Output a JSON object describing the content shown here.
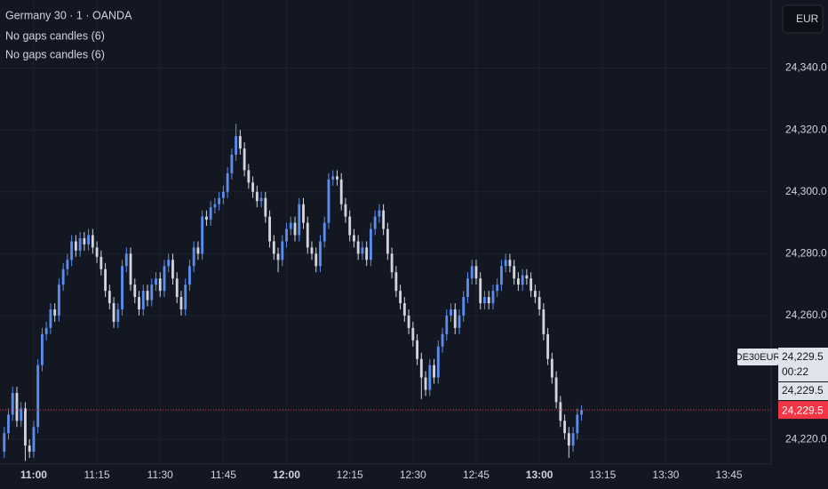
{
  "chart_data": {
    "type": "candlestick",
    "title": "Germany 30 · 1 · OANDA",
    "indicators": [
      "No gaps candles (6)",
      "No gaps candles (6)"
    ],
    "currency": "EUR",
    "up_color": "#5b8def",
    "down_color": "#d1d4dc",
    "xlim": [
      "10:52",
      "13:55"
    ],
    "xticks": [
      "11:00",
      "11:15",
      "11:30",
      "11:45",
      "12:00",
      "12:15",
      "12:30",
      "12:45",
      "13:00",
      "13:15",
      "13:30",
      "13:45"
    ],
    "ylim": [
      24212,
      24362
    ],
    "yticks": [
      {
        "value": 24220,
        "label": "24,220.0"
      },
      {
        "value": 24260,
        "label": "24,260.0"
      },
      {
        "value": 24280,
        "label": "24,280.0"
      },
      {
        "value": 24300,
        "label": "24,300.0"
      },
      {
        "value": 24320,
        "label": "24,320.0"
      },
      {
        "value": 24340,
        "label": "24,340.0"
      }
    ],
    "grid": true,
    "x": [
      "10:53",
      "10:54",
      "10:55",
      "10:56",
      "10:57",
      "10:58",
      "10:59",
      "11:00",
      "11:01",
      "11:02",
      "11:03",
      "11:04",
      "11:05",
      "11:06",
      "11:07",
      "11:08",
      "11:09",
      "11:10",
      "11:11",
      "11:12",
      "11:13",
      "11:14",
      "11:15",
      "11:16",
      "11:17",
      "11:18",
      "11:19",
      "11:20",
      "11:21",
      "11:22",
      "11:23",
      "11:24",
      "11:25",
      "11:26",
      "11:27",
      "11:28",
      "11:29",
      "11:30",
      "11:31",
      "11:32",
      "11:33",
      "11:34",
      "11:35",
      "11:36",
      "11:37",
      "11:38",
      "11:39",
      "11:40",
      "11:41",
      "11:42",
      "11:43",
      "11:44",
      "11:45",
      "11:46",
      "11:47",
      "11:48",
      "11:49",
      "11:50",
      "11:51",
      "11:52",
      "11:53",
      "11:54",
      "11:55",
      "11:56",
      "11:57",
      "11:58",
      "11:59",
      "12:00",
      "12:01",
      "12:02",
      "12:03",
      "12:04",
      "12:05",
      "12:06",
      "12:07",
      "12:08",
      "12:09",
      "12:10",
      "12:11",
      "12:12",
      "12:13",
      "12:14",
      "12:15",
      "12:16",
      "12:17",
      "12:18",
      "12:19",
      "12:20",
      "12:21",
      "12:22",
      "12:23",
      "12:24",
      "12:25",
      "12:26",
      "12:27",
      "12:28",
      "12:29",
      "12:30",
      "12:31",
      "12:32",
      "12:33",
      "12:34",
      "12:35",
      "12:36",
      "12:37",
      "12:38",
      "12:39",
      "12:40",
      "12:41",
      "12:42",
      "12:43",
      "12:44",
      "12:45",
      "12:46",
      "12:47",
      "12:48",
      "12:49",
      "12:50",
      "12:51",
      "12:52",
      "12:53",
      "12:54",
      "12:55",
      "12:56",
      "12:57",
      "12:58",
      "12:59",
      "13:00",
      "13:01",
      "13:02",
      "13:03",
      "13:04",
      "13:05",
      "13:06",
      "13:07",
      "13:08",
      "13:09",
      "13:10"
    ],
    "ohlc": [
      [
        24216,
        24224,
        24214,
        24222
      ],
      [
        24222,
        24230,
        24220,
        24228
      ],
      [
        24228,
        24237,
        24226,
        24235
      ],
      [
        24235,
        24237,
        24224,
        24226
      ],
      [
        24226,
        24232,
        24224,
        24230
      ],
      [
        24230,
        24232,
        24213,
        24218
      ],
      [
        24218,
        24220,
        24214,
        24216
      ],
      [
        24216,
        24226,
        24214,
        24224
      ],
      [
        24224,
        24246,
        24222,
        24244
      ],
      [
        24244,
        24256,
        24242,
        24254
      ],
      [
        24254,
        24258,
        24252,
        24256
      ],
      [
        24256,
        24264,
        24254,
        24262
      ],
      [
        24262,
        24264,
        24258,
        24260
      ],
      [
        24260,
        24272,
        24258,
        24270
      ],
      [
        24270,
        24277,
        24268,
        24275
      ],
      [
        24275,
        24280,
        24273,
        24278
      ],
      [
        24278,
        24286,
        24276,
        24284
      ],
      [
        24284,
        24286,
        24279,
        24281
      ],
      [
        24281,
        24287,
        24279,
        24285
      ],
      [
        24285,
        24287,
        24281,
        24283
      ],
      [
        24283,
        24288,
        24281,
        24286
      ],
      [
        24286,
        24288,
        24280,
        24282
      ],
      [
        24282,
        24284,
        24277,
        24279
      ],
      [
        24279,
        24281,
        24273,
        24275
      ],
      [
        24275,
        24277,
        24266,
        24268
      ],
      [
        24268,
        24270,
        24262,
        24264
      ],
      [
        24264,
        24266,
        24256,
        24258
      ],
      [
        24258,
        24264,
        24256,
        24262
      ],
      [
        24262,
        24278,
        24260,
        24276
      ],
      [
        24276,
        24282,
        24274,
        24280
      ],
      [
        24280,
        24282,
        24268,
        24270
      ],
      [
        24270,
        24272,
        24264,
        24266
      ],
      [
        24266,
        24268,
        24260,
        24262
      ],
      [
        24262,
        24270,
        24260,
        24268
      ],
      [
        24268,
        24270,
        24263,
        24265
      ],
      [
        24265,
        24272,
        24263,
        24270
      ],
      [
        24270,
        24274,
        24268,
        24272
      ],
      [
        24272,
        24274,
        24266,
        24268
      ],
      [
        24268,
        24278,
        24266,
        24276
      ],
      [
        24276,
        24280,
        24274,
        24278
      ],
      [
        24278,
        24280,
        24270,
        24272
      ],
      [
        24272,
        24274,
        24264,
        24266
      ],
      [
        24266,
        24268,
        24260,
        24262
      ],
      [
        24262,
        24272,
        24260,
        24270
      ],
      [
        24270,
        24278,
        24268,
        24276
      ],
      [
        24276,
        24284,
        24274,
        24282
      ],
      [
        24282,
        24284,
        24278,
        24280
      ],
      [
        24280,
        24294,
        24278,
        24292
      ],
      [
        24292,
        24294,
        24289,
        24291
      ],
      [
        24291,
        24297,
        24289,
        24295
      ],
      [
        24295,
        24298,
        24293,
        24296
      ],
      [
        24296,
        24300,
        24294,
        24298
      ],
      [
        24298,
        24302,
        24296,
        24300
      ],
      [
        24300,
        24308,
        24298,
        24306
      ],
      [
        24306,
        24314,
        24304,
        24312
      ],
      [
        24312,
        24322,
        24310,
        24318
      ],
      [
        24318,
        24320,
        24312,
        24314
      ],
      [
        24314,
        24316,
        24305,
        24307
      ],
      [
        24307,
        24309,
        24301,
        24303
      ],
      [
        24303,
        24305,
        24298,
        24300
      ],
      [
        24300,
        24302,
        24295,
        24297
      ],
      [
        24297,
        24300,
        24295,
        24298
      ],
      [
        24298,
        24300,
        24290,
        24292
      ],
      [
        24292,
        24294,
        24282,
        24284
      ],
      [
        24284,
        24286,
        24278,
        24280
      ],
      [
        24280,
        24282,
        24274,
        24278
      ],
      [
        24278,
        24286,
        24276,
        24284
      ],
      [
        24284,
        24290,
        24282,
        24288
      ],
      [
        24288,
        24292,
        24286,
        24290
      ],
      [
        24290,
        24292,
        24284,
        24286
      ],
      [
        24286,
        24298,
        24284,
        24296
      ],
      [
        24296,
        24298,
        24288,
        24290
      ],
      [
        24290,
        24292,
        24280,
        24282
      ],
      [
        24282,
        24284,
        24278,
        24280
      ],
      [
        24280,
        24282,
        24274,
        24276
      ],
      [
        24276,
        24286,
        24274,
        24284
      ],
      [
        24284,
        24292,
        24282,
        24290
      ],
      [
        24290,
        24306,
        24288,
        24304
      ],
      [
        24304,
        24307,
        24302,
        24305
      ],
      [
        24305,
        24307,
        24302,
        24304
      ],
      [
        24304,
        24306,
        24294,
        24296
      ],
      [
        24296,
        24298,
        24290,
        24292
      ],
      [
        24292,
        24294,
        24284,
        24286
      ],
      [
        24286,
        24288,
        24282,
        24284
      ],
      [
        24284,
        24286,
        24278,
        24280
      ],
      [
        24280,
        24284,
        24278,
        24282
      ],
      [
        24282,
        24284,
        24276,
        24278
      ],
      [
        24278,
        24290,
        24276,
        24288
      ],
      [
        24288,
        24294,
        24286,
        24292
      ],
      [
        24292,
        24296,
        24290,
        24294
      ],
      [
        24294,
        24296,
        24286,
        24288
      ],
      [
        24288,
        24290,
        24278,
        24280
      ],
      [
        24280,
        24282,
        24272,
        24274
      ],
      [
        24274,
        24276,
        24266,
        24268
      ],
      [
        24268,
        24270,
        24262,
        24264
      ],
      [
        24264,
        24266,
        24258,
        24260
      ],
      [
        24260,
        24262,
        24254,
        24256
      ],
      [
        24256,
        24258,
        24250,
        24252
      ],
      [
        24252,
        24254,
        24244,
        24246
      ],
      [
        24246,
        24248,
        24233,
        24240
      ],
      [
        24240,
        24242,
        24234,
        24236
      ],
      [
        24236,
        24246,
        24234,
        24244
      ],
      [
        24244,
        24246,
        24238,
        24240
      ],
      [
        24240,
        24252,
        24238,
        24250
      ],
      [
        24250,
        24256,
        24248,
        24254
      ],
      [
        24254,
        24262,
        24252,
        24260
      ],
      [
        24260,
        24264,
        24258,
        24262
      ],
      [
        24262,
        24264,
        24254,
        24256
      ],
      [
        24256,
        24262,
        24254,
        24260
      ],
      [
        24260,
        24268,
        24258,
        24266
      ],
      [
        24266,
        24274,
        24264,
        24272
      ],
      [
        24272,
        24278,
        24270,
        24276
      ],
      [
        24276,
        24278,
        24270,
        24272
      ],
      [
        24272,
        24274,
        24262,
        24264
      ],
      [
        24264,
        24268,
        24262,
        24266
      ],
      [
        24266,
        24268,
        24262,
        24264
      ],
      [
        24264,
        24270,
        24262,
        24268
      ],
      [
        24268,
        24272,
        24266,
        24270
      ],
      [
        24270,
        24278,
        24268,
        24276
      ],
      [
        24276,
        24280,
        24274,
        24278
      ],
      [
        24278,
        24280,
        24274,
        24276
      ],
      [
        24276,
        24278,
        24270,
        24272
      ],
      [
        24272,
        24274,
        24268,
        24270
      ],
      [
        24270,
        24275,
        24268,
        24273
      ],
      [
        24273,
        24275,
        24270,
        24272
      ],
      [
        24272,
        24274,
        24266,
        24268
      ],
      [
        24268,
        24270,
        24264,
        24266
      ],
      [
        24266,
        24268,
        24260,
        24262
      ],
      [
        24262,
        24264,
        24252,
        24254
      ],
      [
        24254,
        24256,
        24244,
        24246
      ],
      [
        24246,
        24248,
        24238,
        24240
      ],
      [
        24240,
        24242,
        24230,
        24232
      ],
      [
        24232,
        24234,
        24224,
        24226
      ],
      [
        24226,
        24228,
        24220,
        24222
      ],
      [
        24222,
        24224,
        24214,
        24218
      ],
      [
        24218,
        24224,
        24216,
        24222
      ],
      [
        24222,
        24230,
        24220,
        24228
      ],
      [
        24228,
        24231,
        24226,
        24229.5
      ]
    ],
    "symbol": "DE30EUR",
    "countdown": "00:22",
    "price_labels": [
      {
        "value": 24229.5,
        "label": "24,229.5"
      },
      {
        "value": 24229.5,
        "label": "24,229.5"
      },
      {
        "value": 24229.5,
        "label": "24,229.5"
      }
    ]
  }
}
